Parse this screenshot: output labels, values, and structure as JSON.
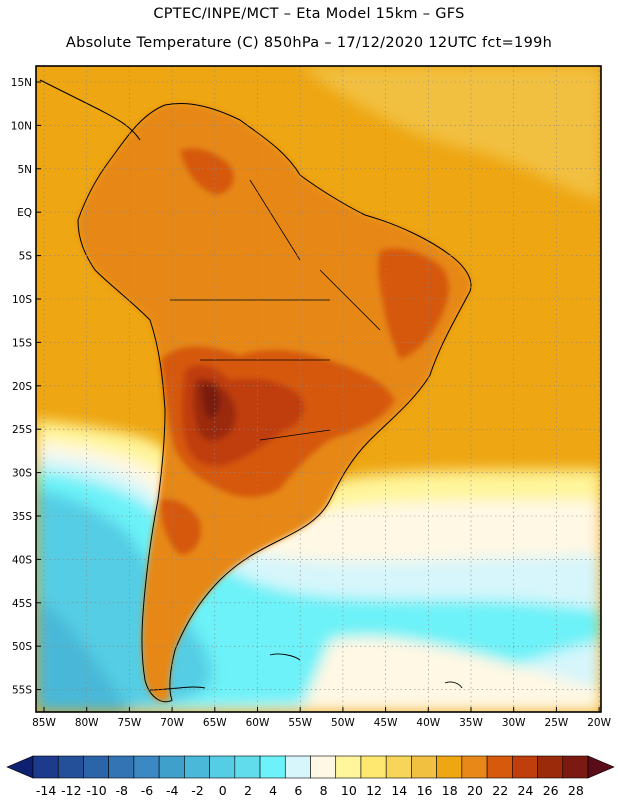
{
  "header": {
    "line1": "CPTEC/INPE/MCT –   Eta Model 15km – GFS",
    "line2": "Absolute Temperature (C) 850hPa – 17/12/2020 12UTC fct=199h"
  },
  "axes": {
    "lat_labels": [
      "15N",
      "10N",
      "5N",
      "EQ",
      "5S",
      "10S",
      "15S",
      "20S",
      "25S",
      "30S",
      "35S",
      "40S",
      "45S",
      "50S",
      "55S"
    ],
    "lon_labels": [
      "85W",
      "80W",
      "75W",
      "70W",
      "65W",
      "60W",
      "55W",
      "50W",
      "45W",
      "40W",
      "35W",
      "30W",
      "25W",
      "20W"
    ]
  },
  "colorbar": {
    "ticks": [
      "-14",
      "-12",
      "-10",
      "-8",
      "-6",
      "-4",
      "-2",
      "0",
      "2",
      "4",
      "6",
      "8",
      "10",
      "12",
      "14",
      "16",
      "18",
      "20",
      "22",
      "24",
      "26",
      "28"
    ],
    "colors": [
      "#1d3a8c",
      "#24509a",
      "#2b64a8",
      "#3374b4",
      "#3b88c2",
      "#40a0cc",
      "#4ab8d8",
      "#55cde4",
      "#60dcec",
      "#6cf2f8",
      "#d6f6fb",
      "#fff8e4",
      "#fff59a",
      "#ffe870",
      "#f7d558",
      "#f2c040",
      "#eea612",
      "#e78818",
      "#d6590c",
      "#c03e0c",
      "#9b2a0a",
      "#7a1a10"
    ],
    "under_color": "#0f2070",
    "over_color": "#5a0c18"
  },
  "map_colors": {
    "ocean_warm": "#eea612",
    "ocean_gold": "#f2c040",
    "pale_yellow": "#fff59a",
    "cream": "#fff8e4",
    "very_light_cyan": "#d6f6fb",
    "cyan": "#6cf2f8",
    "light_blue": "#55cde4",
    "mid_blue": "#4ab8d8",
    "land_orange": "#e78818",
    "land_dark_orange": "#d6590c",
    "land_red_brown": "#c03e0c",
    "land_brown": "#9b2a0a",
    "land_dark": "#7a1a10"
  }
}
